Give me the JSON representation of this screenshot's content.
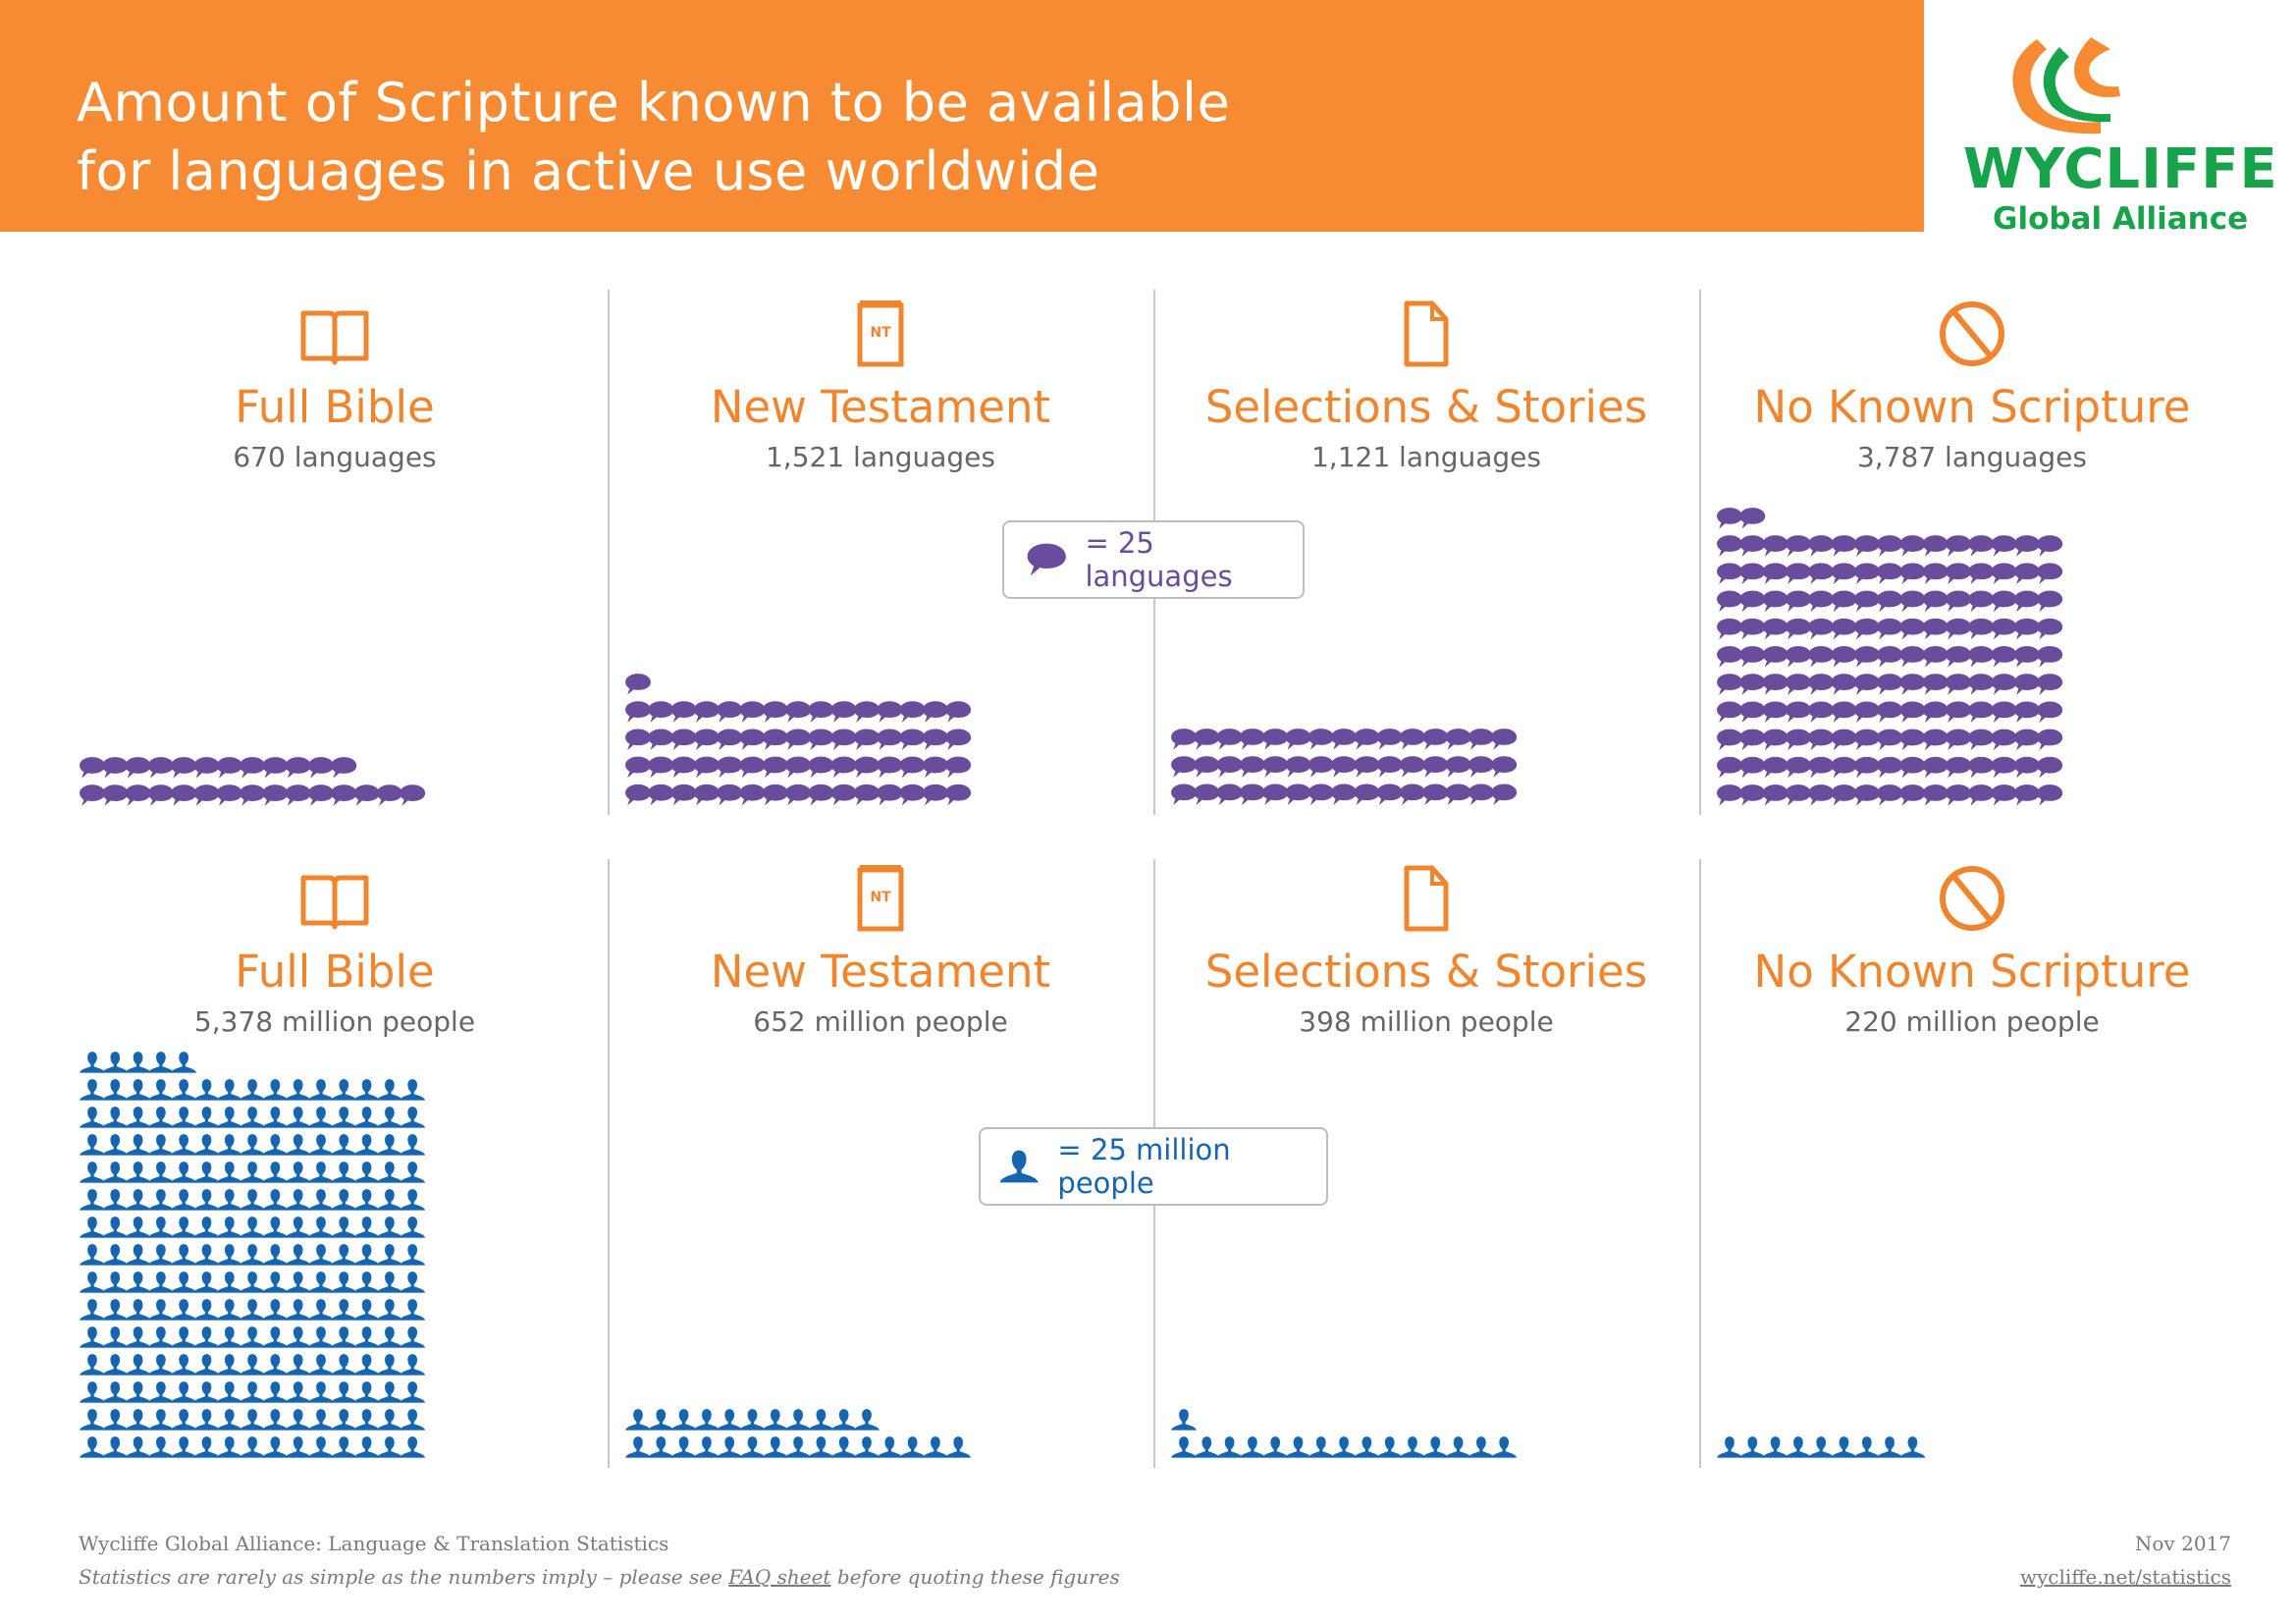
{
  "header": {
    "title_line1": "Amount of Scripture known to be available",
    "title_line2": "for languages in active use worldwide",
    "logo_word": "WYCLIFFE",
    "logo_sub": "Global Alliance"
  },
  "colors": {
    "orange": "#f68b33",
    "title_orange": "#f0852d",
    "purple": "#6a4c9c",
    "blue": "#1565b0",
    "green": "#17a34a"
  },
  "legends": {
    "languages": "= 25 languages",
    "people": "= 25 million people"
  },
  "footer": {
    "source": "Wycliffe Global Alliance: Language & Translation Statistics",
    "note_before": "Statistics are rarely as simple as the numbers imply – please see ",
    "note_link": "FAQ sheet",
    "note_after": " before quoting these figures",
    "date": "Nov 2017",
    "url": "wycliffe.net/statistics"
  },
  "chart_data": [
    {
      "type": "pictograph",
      "title": "Languages by amount of Scripture",
      "unit": "languages",
      "icon": "speech-bubble-icon",
      "icon_value": 25,
      "categories": [
        "Full Bible",
        "New Testament",
        "Selections & Stories",
        "No Known Scripture"
      ],
      "category_icons": [
        "open-book-icon",
        "new-testament-icon",
        "document-icon",
        "no-symbol-icon"
      ],
      "values": [
        670,
        1521,
        1121,
        3787
      ],
      "value_labels": [
        "670 languages",
        "1,521 languages",
        "1,121 languages",
        "3,787 languages"
      ],
      "icon_counts": [
        27,
        61,
        45,
        152
      ],
      "icons_per_row": 15
    },
    {
      "type": "pictograph",
      "title": "People by amount of Scripture",
      "unit": "million people",
      "icon": "person-icon",
      "icon_value": 25,
      "categories": [
        "Full Bible",
        "New Testament",
        "Selections & Stories",
        "No Known Scripture"
      ],
      "category_icons": [
        "open-book-icon",
        "new-testament-icon",
        "document-icon",
        "no-symbol-icon"
      ],
      "values": [
        5378,
        652,
        398,
        220
      ],
      "value_labels": [
        "5,378 million people",
        "652 million people",
        "398 million people",
        "220 million people"
      ],
      "icon_counts": [
        215,
        26,
        16,
        9
      ],
      "icons_per_row": 15
    }
  ]
}
